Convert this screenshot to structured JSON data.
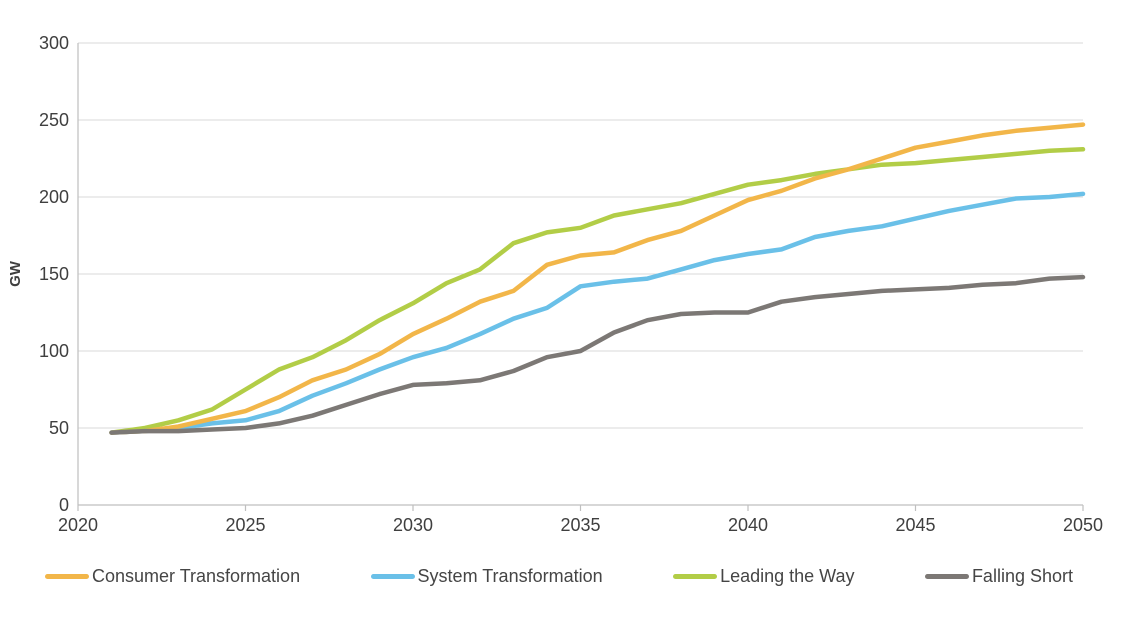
{
  "chart_data": {
    "type": "line",
    "title": "",
    "xlabel": "",
    "ylabel": "GW",
    "xlim": [
      2020,
      2050
    ],
    "ylim": [
      0,
      300
    ],
    "xticks": [
      2020,
      2025,
      2030,
      2035,
      2040,
      2045,
      2050
    ],
    "yticks": [
      0,
      50,
      100,
      150,
      200,
      250,
      300
    ],
    "grid": true,
    "legend_position": "bottom",
    "x": [
      2021,
      2022,
      2023,
      2024,
      2025,
      2026,
      2027,
      2028,
      2029,
      2030,
      2031,
      2032,
      2033,
      2034,
      2035,
      2036,
      2037,
      2038,
      2039,
      2040,
      2041,
      2042,
      2043,
      2044,
      2045,
      2046,
      2047,
      2048,
      2049,
      2050
    ],
    "series": [
      {
        "name": "Consumer Transformation",
        "color": "#F2B649",
        "values": [
          47,
          48,
          51,
          56,
          61,
          70,
          81,
          88,
          98,
          111,
          121,
          132,
          139,
          156,
          162,
          164,
          172,
          178,
          188,
          198,
          204,
          212,
          218,
          225,
          232,
          236,
          240,
          243,
          245,
          247
        ]
      },
      {
        "name": "System Transformation",
        "color": "#6AC0E8",
        "values": [
          47,
          48,
          50,
          53,
          55,
          61,
          71,
          79,
          88,
          96,
          102,
          111,
          121,
          128,
          142,
          145,
          147,
          153,
          159,
          163,
          166,
          174,
          178,
          181,
          186,
          191,
          195,
          199,
          200,
          202
        ]
      },
      {
        "name": "Leading the Way",
        "color": "#B2CD47",
        "values": [
          47,
          50,
          55,
          62,
          75,
          88,
          96,
          107,
          120,
          131,
          144,
          153,
          170,
          177,
          180,
          188,
          192,
          196,
          202,
          208,
          211,
          215,
          218,
          221,
          222,
          224,
          226,
          228,
          230,
          231
        ]
      },
      {
        "name": "Falling Short",
        "color": "#7C7875",
        "values": [
          47,
          48,
          48,
          49,
          50,
          53,
          58,
          65,
          72,
          78,
          79,
          81,
          87,
          96,
          100,
          112,
          120,
          124,
          125,
          125,
          132,
          135,
          137,
          139,
          140,
          141,
          143,
          144,
          147,
          148
        ]
      }
    ],
    "colors": {
      "gridline": "#DADADA",
      "axis": "#BFBFBF",
      "tick_label": "#3F3F3F",
      "axis_label": "#3F3F3F"
    }
  }
}
